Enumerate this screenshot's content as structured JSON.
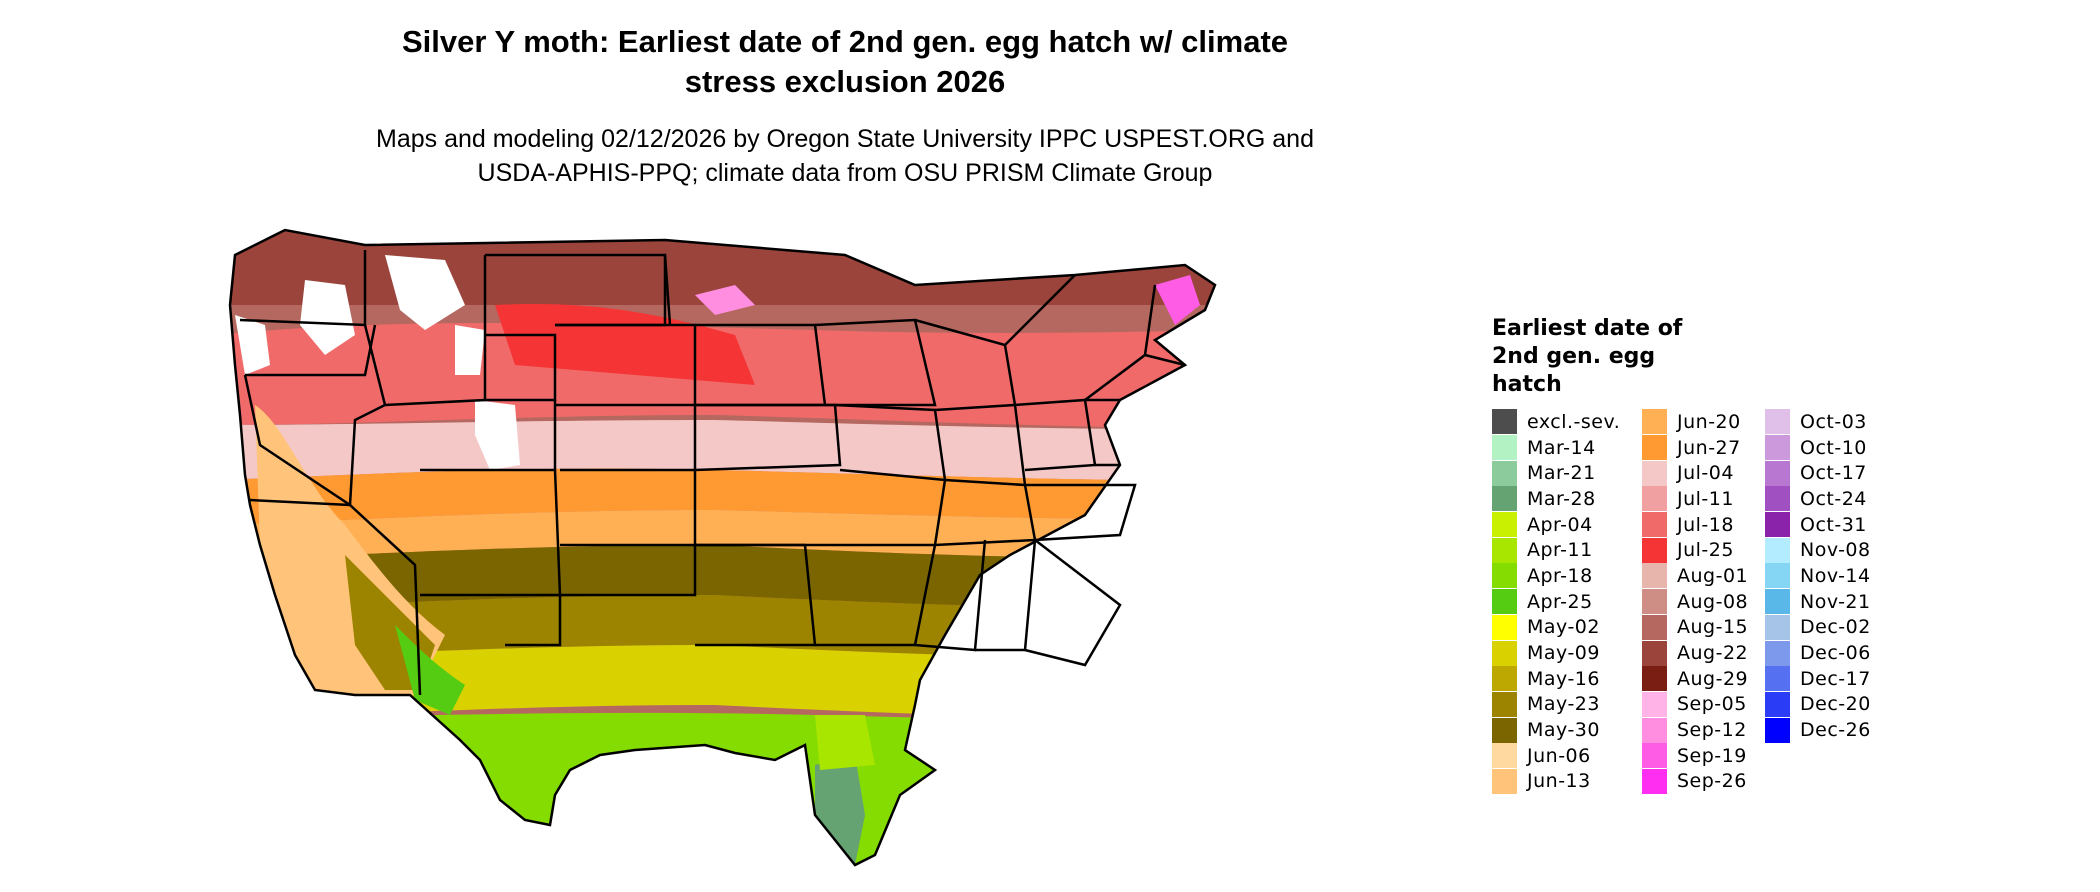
{
  "header": {
    "title_line1": "Silver Y moth: Earliest date of 2nd gen. egg hatch w/ climate",
    "title_line2": "stress exclusion 2026",
    "subtitle_line1": "Maps and modeling 02/12/2026 by Oregon State University IPPC USPEST.ORG and",
    "subtitle_line2": "USDA-APHIS-PPQ; climate data from OSU PRISM Climate Group"
  },
  "legend": {
    "title": "Earliest date of 2nd gen. egg hatch",
    "items": [
      {
        "label": "excl.-sev.",
        "color": "#4d4d4d"
      },
      {
        "label": "Mar-14",
        "color": "#b3f2c3"
      },
      {
        "label": "Mar-21",
        "color": "#8ccb9b"
      },
      {
        "label": "Mar-28",
        "color": "#66a373"
      },
      {
        "label": "Apr-04",
        "color": "#c8f000"
      },
      {
        "label": "Apr-11",
        "color": "#a8e600"
      },
      {
        "label": "Apr-18",
        "color": "#84dc00"
      },
      {
        "label": "Apr-25",
        "color": "#55cc11"
      },
      {
        "label": "May-02",
        "color": "#ffff00"
      },
      {
        "label": "May-09",
        "color": "#d9d200"
      },
      {
        "label": "May-16",
        "color": "#bca800"
      },
      {
        "label": "May-23",
        "color": "#9c8400"
      },
      {
        "label": "May-30",
        "color": "#7a6500"
      },
      {
        "label": "Jun-06",
        "color": "#ffd9a0"
      },
      {
        "label": "Jun-13",
        "color": "#ffc47a"
      },
      {
        "label": "Jun-20",
        "color": "#ffb055"
      },
      {
        "label": "Jun-27",
        "color": "#ff9a33"
      },
      {
        "label": "Jul-04",
        "color": "#f5c8c8"
      },
      {
        "label": "Jul-11",
        "color": "#f0a0a0"
      },
      {
        "label": "Jul-18",
        "color": "#f06a6a"
      },
      {
        "label": "Jul-25",
        "color": "#f53535"
      },
      {
        "label": "Aug-01",
        "color": "#e8b5ad"
      },
      {
        "label": "Aug-08",
        "color": "#cf8e85"
      },
      {
        "label": "Aug-15",
        "color": "#b56860"
      },
      {
        "label": "Aug-22",
        "color": "#9a443c"
      },
      {
        "label": "Aug-29",
        "color": "#7a1e14"
      },
      {
        "label": "Sep-05",
        "color": "#ffb3e6"
      },
      {
        "label": "Sep-12",
        "color": "#ff8de0"
      },
      {
        "label": "Sep-19",
        "color": "#ff5ce6"
      },
      {
        "label": "Sep-26",
        "color": "#ff2ef0"
      },
      {
        "label": "Oct-03",
        "color": "#e0bfe8"
      },
      {
        "label": "Oct-10",
        "color": "#cc99dd"
      },
      {
        "label": "Oct-17",
        "color": "#b877d0"
      },
      {
        "label": "Oct-24",
        "color": "#a050c0"
      },
      {
        "label": "Oct-31",
        "color": "#8a22aa"
      },
      {
        "label": "Nov-08",
        "color": "#b3ecff"
      },
      {
        "label": "Nov-14",
        "color": "#85d6f5"
      },
      {
        "label": "Nov-21",
        "color": "#5ab8e8"
      },
      {
        "label": "Dec-02",
        "color": "#a6c4e8"
      },
      {
        "label": "Dec-06",
        "color": "#7d99ec"
      },
      {
        "label": "Dec-17",
        "color": "#5570f0"
      },
      {
        "label": "Dec-20",
        "color": "#2a3cf5"
      },
      {
        "label": "Dec-26",
        "color": "#0000ff"
      }
    ]
  }
}
